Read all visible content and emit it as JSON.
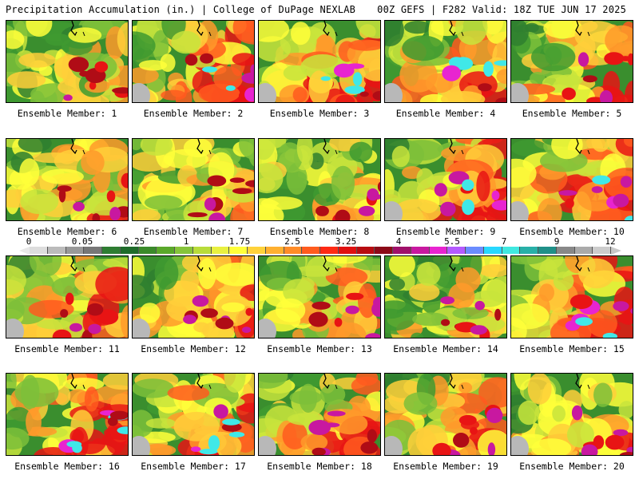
{
  "header": {
    "left": "Precipitation Accumulation (in.) | College of DuPage NEXLAB",
    "right": "00Z GEFS | F282 Valid: 18Z TUE JUN 17 2025"
  },
  "legend": {
    "labels": [
      "0",
      "0.05",
      "0.25",
      "1",
      "1.75",
      "2.5",
      "3.25",
      "4",
      "5.5",
      "7",
      "9",
      "12"
    ],
    "colors": [
      "#dddddd",
      "#bbbbbb",
      "#999999",
      "#777777",
      "#2e7d32",
      "#1f6b2a",
      "#3a8a2a",
      "#5aa82a",
      "#86c43a",
      "#b8dc3a",
      "#e8f040",
      "#ffff3a",
      "#ffd23a",
      "#ffb030",
      "#ff8c28",
      "#ff5c1e",
      "#ff2a14",
      "#e01010",
      "#b80c10",
      "#8c0a18",
      "#a0106a",
      "#c818a0",
      "#e824d0",
      "#b45aff",
      "#6a8cff",
      "#28d8ff",
      "#40e8e0",
      "#28b0a8",
      "#209088",
      "#888888",
      "#aaaaaa",
      "#cccccc"
    ]
  },
  "panels": [
    {
      "caption": "Ensemble Member: 1"
    },
    {
      "caption": "Ensemble Member: 2"
    },
    {
      "caption": "Ensemble Member: 3"
    },
    {
      "caption": "Ensemble Member: 4"
    },
    {
      "caption": "Ensemble Member: 5"
    },
    {
      "caption": "Ensemble Member: 6"
    },
    {
      "caption": "Ensemble Member: 7"
    },
    {
      "caption": "Ensemble Member: 8"
    },
    {
      "caption": "Ensemble Member: 9"
    },
    {
      "caption": "Ensemble Member: 10"
    },
    {
      "caption": "Ensemble Member: 11"
    },
    {
      "caption": "Ensemble Member: 12"
    },
    {
      "caption": "Ensemble Member: 13"
    },
    {
      "caption": "Ensemble Member: 14"
    },
    {
      "caption": "Ensemble Member: 15"
    },
    {
      "caption": "Ensemble Member: 16"
    },
    {
      "caption": "Ensemble Member: 17"
    },
    {
      "caption": "Ensemble Member: 18"
    },
    {
      "caption": "Ensemble Member: 19"
    },
    {
      "caption": "Ensemble Member: 20"
    }
  ]
}
